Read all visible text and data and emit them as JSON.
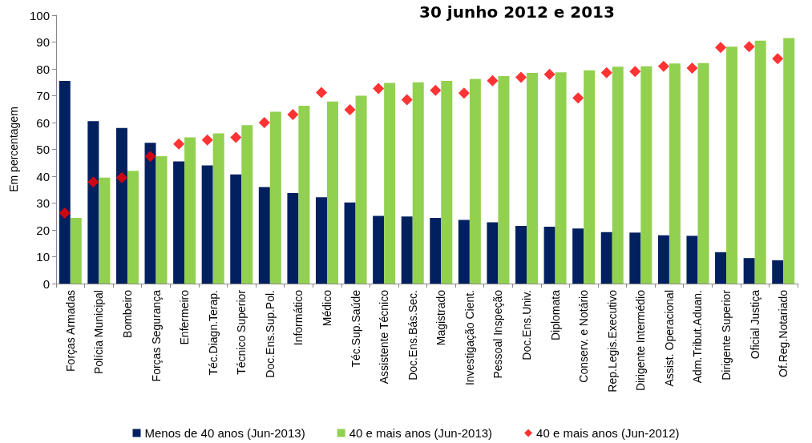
{
  "chart_data": {
    "type": "bar",
    "title": "30 junho 2012 e 2013",
    "ylabel": "Em percentagem",
    "categories": [
      "Forças Armadas",
      "Polícia Municipal",
      "Bombeiro",
      "Forças Segurança",
      "Enfermeiro",
      "Téc.Diagn.Terap.",
      "Técnico Superior",
      "Doc.Ens.Sup.Pol.",
      "Informático",
      "Médico",
      "Téc.Sup.Saúde",
      "Assistente Técnico",
      "Doc.Ens.Bás.Sec.",
      "Magistrado",
      "Investigação Cient.",
      "Pessoal Inspeção",
      "Doc.Ens.Univ.",
      "Diplomata",
      "Conserv. e Notário",
      "Rep.Legis.Executivo",
      "Dirigente Intermédio",
      "Assist. Operacional",
      "Adm.Tribut.Aduan.",
      "Dirigente Superior",
      "Oficial Justiça",
      "Of.Reg.Notariado"
    ],
    "series": [
      {
        "name": "Menos de 40 anos (Jun-2013)",
        "color": "#002060",
        "values": [
          75.5,
          60.5,
          58,
          52.5,
          45.5,
          44,
          40.7,
          36,
          33.7,
          32.2,
          30.2,
          25.2,
          25,
          24.5,
          23.7,
          22.8,
          21.5,
          21.2,
          20.5,
          19.2,
          19,
          18,
          17.8,
          11.7,
          9.5,
          8.7
        ]
      },
      {
        "name": "40 e mais anos (Jun-2013)",
        "color": "#92d050",
        "values": [
          24.5,
          39.5,
          42,
          47.5,
          54.5,
          56,
          59,
          64,
          66.3,
          67.8,
          70,
          74.8,
          75,
          75.5,
          76.3,
          77.3,
          78.5,
          78.7,
          79.5,
          80.8,
          81,
          82,
          82.2,
          88.3,
          90.5,
          91.5
        ]
      },
      {
        "name": "40 e mais anos (Jun-2012)",
        "type": "scatter",
        "marker": "diamond",
        "color": "#ff0000",
        "values": [
          26.3,
          37.8,
          39.5,
          47.4,
          52,
          53.5,
          54.5,
          60,
          63,
          71.2,
          64.8,
          72.7,
          68.5,
          72,
          71,
          75.6,
          76.9,
          78,
          69.2,
          78.6,
          79,
          81,
          80.3,
          88,
          88.3,
          83.8
        ]
      }
    ],
    "ylim": [
      0,
      100
    ],
    "yticks": [
      0,
      10,
      20,
      30,
      40,
      50,
      60,
      70,
      80,
      90,
      100
    ],
    "grid": false,
    "legend": "bottom"
  }
}
